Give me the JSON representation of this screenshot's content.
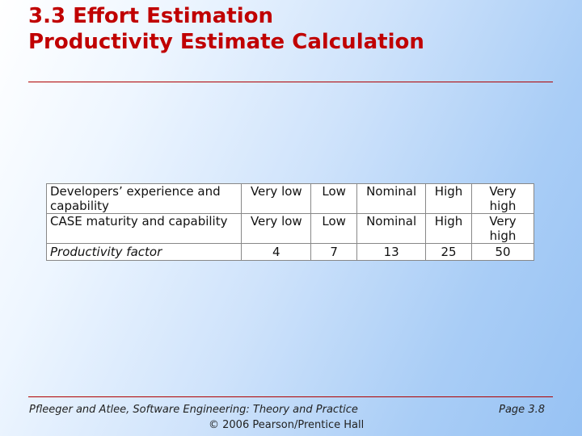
{
  "slide": {
    "title_line1": "3.3 Effort Estimation",
    "title_line2": "Productivity Estimate Calculation"
  },
  "table": {
    "rows": [
      {
        "label": "Developers’ experience and capability",
        "cells": [
          "Very low",
          "Low",
          "Nominal",
          "High",
          "Very high"
        ]
      },
      {
        "label": "CASE maturity and capability",
        "cells": [
          "Very low",
          "Low",
          "Nominal",
          "High",
          "Very high"
        ]
      },
      {
        "label": "Productivity factor",
        "cells": [
          "4",
          "7",
          "13",
          "25",
          "50"
        ]
      }
    ]
  },
  "footer": {
    "citation": "Pfleeger and Atlee, Software Engineering: Theory and Practice",
    "copyright": "© 2006 Pearson/Prentice Hall",
    "page": "Page 3.8"
  }
}
